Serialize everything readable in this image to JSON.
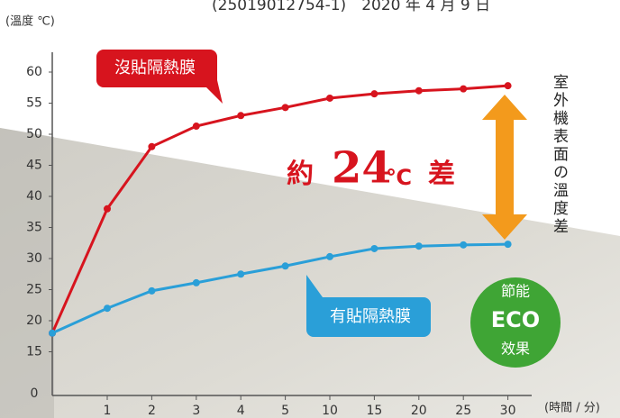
{
  "chart_data": {
    "type": "line",
    "header": "(25019012754-1)　2020 年 4 月 9 日",
    "y_label": "(溫度 ℃)",
    "x_label": "(時間 / 分)",
    "categories": [
      null,
      "1",
      "2",
      "3",
      "4",
      "5",
      "10",
      "15",
      "20",
      "25",
      "30"
    ],
    "series": [
      {
        "name": "沒貼隔熱膜",
        "color": "#d7141e",
        "values": [
          18,
          38,
          48,
          51.3,
          53,
          54.3,
          55.8,
          56.5,
          57,
          57.3,
          57.8
        ]
      },
      {
        "name": "有貼隔熱膜",
        "color": "#2a9fd8",
        "values": [
          18,
          22,
          24.8,
          26.1,
          27.5,
          28.8,
          30.3,
          31.6,
          32,
          32.2,
          32.3
        ]
      }
    ],
    "ylim": [
      8,
      62
    ],
    "yticks": [
      15,
      20,
      25,
      30,
      35,
      40,
      45,
      50,
      55,
      60
    ],
    "y_origin_label": "0",
    "annotation": {
      "prefix": "約",
      "number": "24",
      "unit": "℃",
      "suffix": "差"
    },
    "side_label": "室外機表面の溫度差",
    "badge": {
      "top": "節能",
      "middle": "ECO",
      "bottom": "效果"
    }
  }
}
